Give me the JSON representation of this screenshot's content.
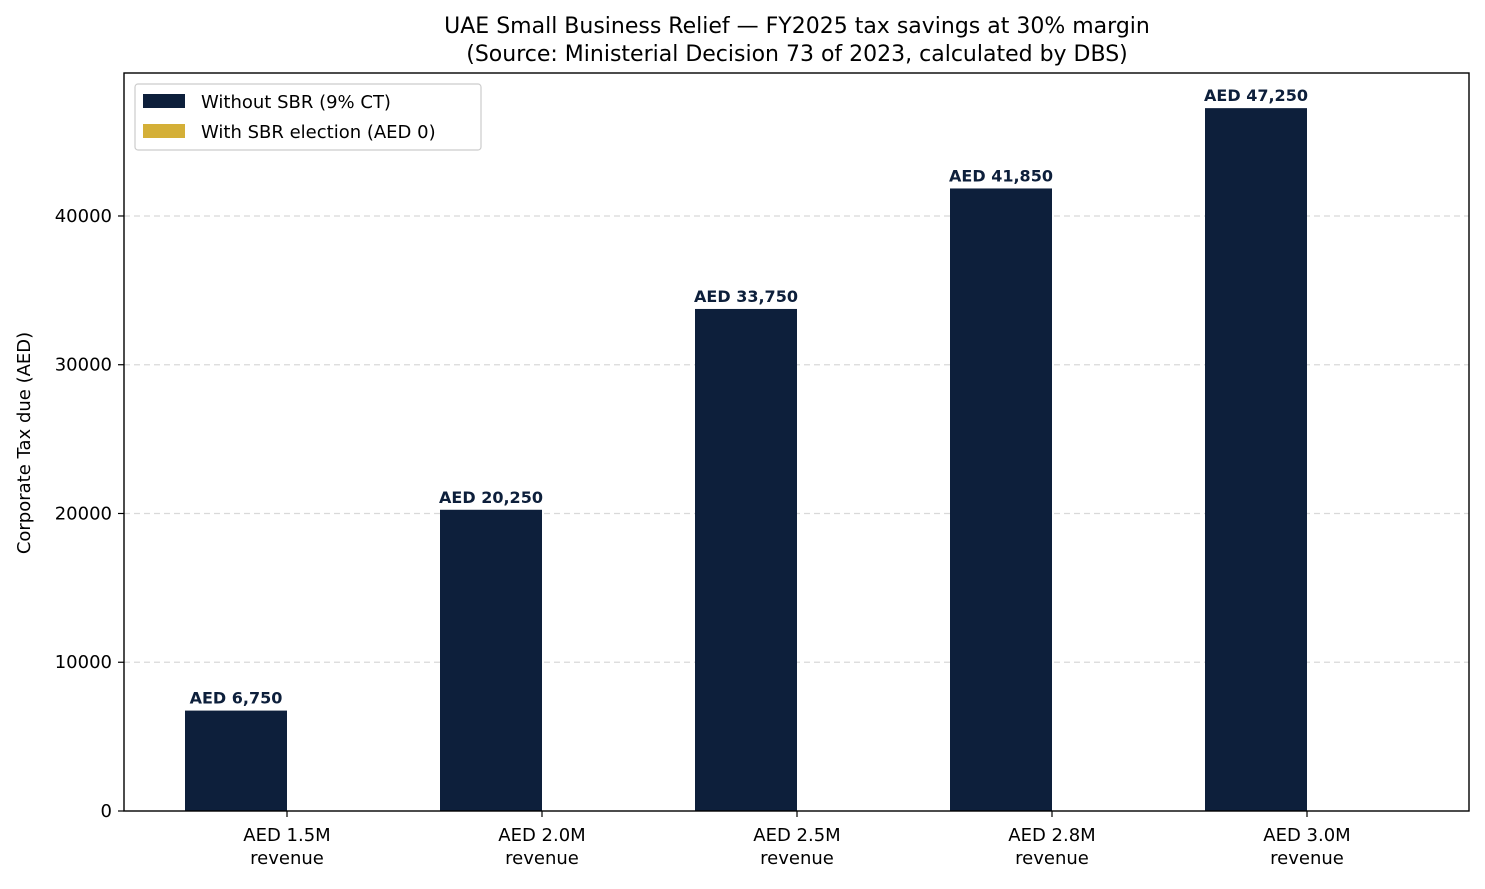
{
  "chart_data": {
    "type": "bar",
    "title": "UAE Small Business Relief — FY2025 tax savings at 30% margin",
    "subtitle": "(Source: Ministerial Decision 73 of 2023, calculated by DBS)",
    "xlabel": "",
    "ylabel": "Corporate Tax due (AED)",
    "categories": [
      [
        "AED 1.5M",
        "revenue"
      ],
      [
        "AED 2.0M",
        "revenue"
      ],
      [
        "AED 2.5M",
        "revenue"
      ],
      [
        "AED 2.8M",
        "revenue"
      ],
      [
        "AED 3.0M",
        "revenue"
      ]
    ],
    "series": [
      {
        "name": "Without SBR (9% CT)",
        "color": "#0d1f3b",
        "values": [
          6750,
          20250,
          33750,
          41850,
          47250
        ],
        "labels": [
          "AED 6,750",
          "AED 20,250",
          "AED 33,750",
          "AED 41,850",
          "AED 47,250"
        ]
      },
      {
        "name": "With SBR election (AED 0)",
        "color": "#d4af37",
        "values": [
          0,
          0,
          0,
          0,
          0
        ]
      }
    ],
    "ylim": [
      0,
      49612
    ],
    "yticks": [
      0,
      10000,
      20000,
      30000,
      40000
    ],
    "grid": "y-dashed",
    "legend_position": "top-left"
  }
}
